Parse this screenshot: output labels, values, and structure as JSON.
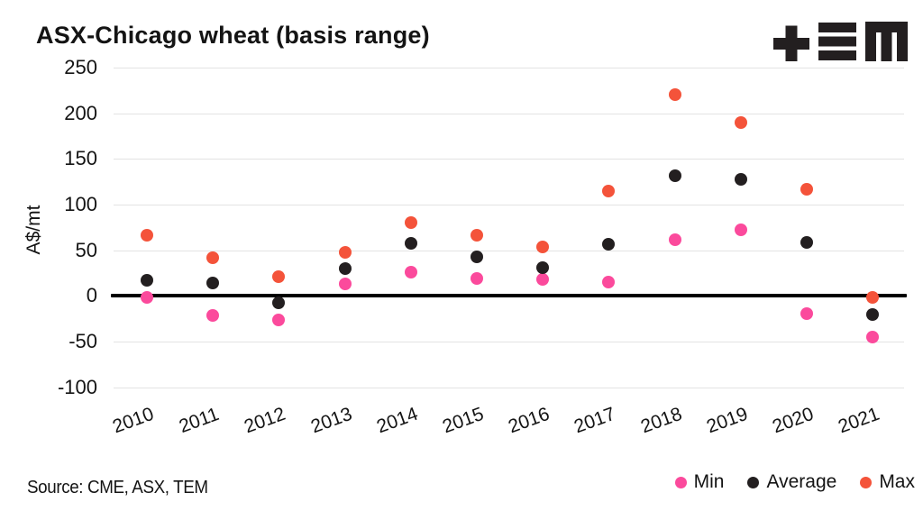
{
  "header": {
    "title": "ASX-Chicago wheat (basis range)",
    "logo_name": "TEM"
  },
  "chart_data": {
    "type": "scatter",
    "title": "ASX-Chicago wheat (basis range)",
    "xlabel": "",
    "ylabel": "A$/mt",
    "ylim": [
      -100,
      250
    ],
    "yticks": [
      250,
      200,
      150,
      100,
      50,
      0,
      -50,
      -100
    ],
    "grid": true,
    "zero_baseline": true,
    "legend_position": "bottom-right",
    "categories": [
      "2010",
      "2011",
      "2012",
      "2013",
      "2014",
      "2015",
      "2016",
      "2017",
      "2018",
      "2019",
      "2020",
      "2021"
    ],
    "series": [
      {
        "name": "Min",
        "color": "#fb4a9c",
        "values": [
          -2,
          -22,
          -26,
          13,
          26,
          19,
          18,
          15,
          61,
          72,
          -20,
          -45
        ]
      },
      {
        "name": "Average",
        "color": "#231f20",
        "values": [
          17,
          14,
          -8,
          30,
          57,
          43,
          31,
          56,
          132,
          128,
          58,
          -21
        ]
      },
      {
        "name": "Max",
        "color": "#f4533a",
        "values": [
          66,
          42,
          21,
          48,
          80,
          66,
          54,
          115,
          220,
          190,
          117,
          -2
        ]
      }
    ]
  },
  "colors": {
    "min": "#fb4a9c",
    "average": "#231f20",
    "max": "#f4533a",
    "grid": "#e3e3e3",
    "baseline": "#000000",
    "text": "#141414"
  },
  "footer": {
    "source": "Source: CME, ASX, TEM"
  }
}
